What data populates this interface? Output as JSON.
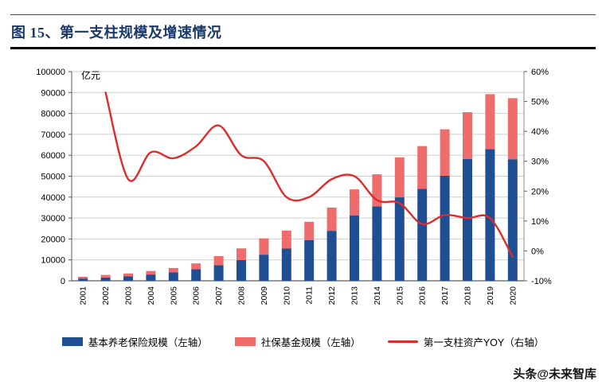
{
  "header": {
    "title": "图 15、第一支柱规模及增速情况"
  },
  "watermark": "头条@未来智库",
  "legend": {
    "items": [
      {
        "label": "基本养老保险规模（左轴）",
        "color": "#1F4E92",
        "marker": "rect"
      },
      {
        "label": "社保基金规模（左轴）",
        "color": "#EE6C6B",
        "marker": "rect"
      },
      {
        "label": "第一支柱资产YOY（右轴）",
        "color": "#DD2C2C",
        "marker": "line"
      }
    ]
  },
  "chart_data": {
    "type": "bar",
    "subtype": "stacked-bars-with-line",
    "title": "第一支柱规模及增速情况",
    "unit_label": "亿元",
    "legend_position": "bottom",
    "grid": "horizontal",
    "categories": [
      "2001",
      "2002",
      "2003",
      "2004",
      "2005",
      "2006",
      "2007",
      "2008",
      "2009",
      "2010",
      "2011",
      "2012",
      "2013",
      "2014",
      "2015",
      "2016",
      "2017",
      "2018",
      "2019",
      "2020"
    ],
    "series": [
      {
        "name": "基本养老保险规模（左轴）",
        "type": "bar",
        "axis": "left",
        "color": "#1F4E92",
        "values": [
          1100,
          1600,
          2200,
          3000,
          4000,
          5500,
          7400,
          9900,
          12500,
          15400,
          19500,
          23900,
          31300,
          35600,
          39900,
          44000,
          50200,
          58200,
          62900,
          58100
        ]
      },
      {
        "name": "社保基金规模（左轴）",
        "type": "bar",
        "axis": "left",
        "color": "#EE6C6B",
        "values": [
          800,
          1200,
          1300,
          1700,
          2100,
          2800,
          4400,
          5600,
          7800,
          8600,
          8700,
          11100,
          12400,
          15300,
          19100,
          20400,
          22200,
          22400,
          26300,
          29200
        ]
      },
      {
        "name": "第一支柱资产YOY（右轴）",
        "type": "line",
        "axis": "right",
        "color": "#DD2C2C",
        "values": [
          null,
          53,
          24,
          33,
          31,
          35,
          42,
          32,
          30,
          18,
          18,
          24,
          25,
          17,
          16,
          9,
          12,
          11,
          11,
          -2
        ]
      }
    ],
    "left_axis": {
      "min": 0,
      "max": 100000,
      "step": 10000,
      "ticks": [
        0,
        10000,
        20000,
        30000,
        40000,
        50000,
        60000,
        70000,
        80000,
        90000,
        100000
      ]
    },
    "right_axis": {
      "min": -10,
      "max": 60,
      "step": 10,
      "ticks": [
        -10,
        0,
        10,
        20,
        30,
        40,
        50,
        60
      ],
      "suffix": "%"
    }
  }
}
